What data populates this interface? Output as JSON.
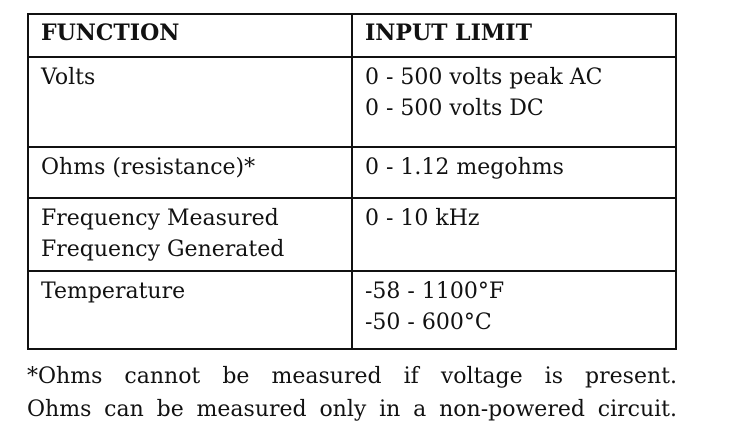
{
  "table": {
    "header": [
      "FUNCTION",
      "INPUT LIMIT"
    ],
    "rows": [
      [
        [
          "Volts"
        ],
        [
          "0 - 500 volts peak AC",
          "0 - 500 volts DC"
        ]
      ],
      [
        [
          "Ohms (resistance)*"
        ],
        [
          "0 - 1.12 megohms"
        ]
      ],
      [
        [
          "Frequency Measured",
          "Frequency Generated"
        ],
        [
          "0 - 10 kHz"
        ]
      ],
      [
        [
          "Temperature"
        ],
        [
          "-58 - 1100°F",
          "-50 - 600°C"
        ]
      ]
    ]
  },
  "footnote": [
    "*Ohms cannot be measured if voltage is present.",
    "Ohms can be measured only in a non-powered circuit."
  ]
}
